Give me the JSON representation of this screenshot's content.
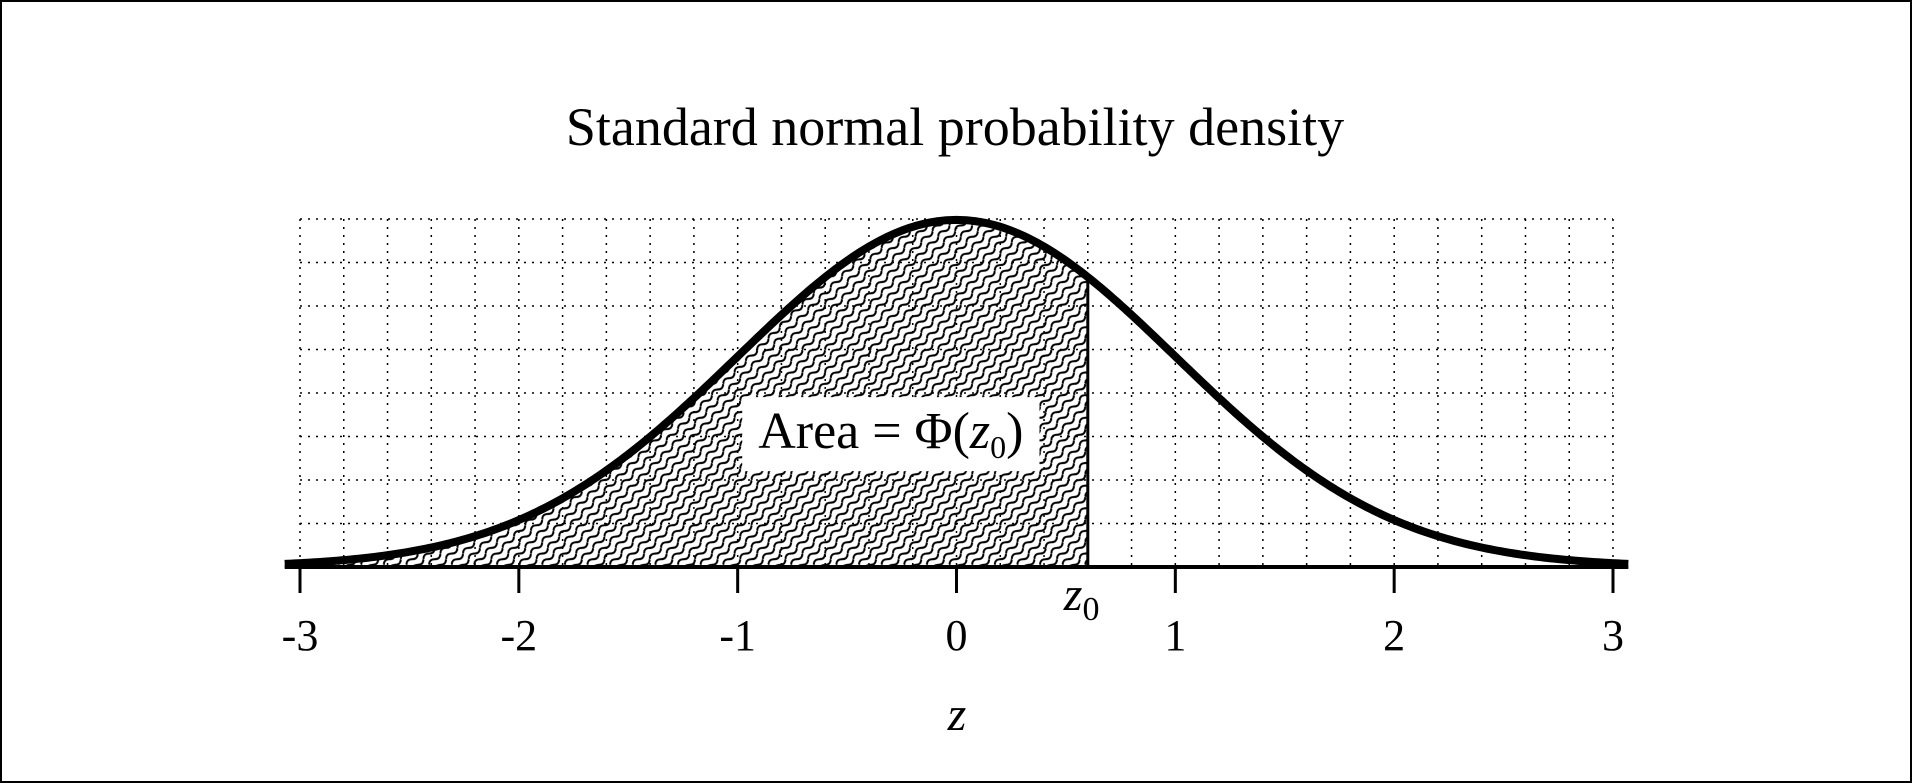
{
  "chart_data": {
    "type": "area",
    "title": "Standard normal probability density",
    "xlabel": "z",
    "ylabel": "",
    "xlim": [
      -3,
      3
    ],
    "ylim": [
      0,
      0.4
    ],
    "x_ticks": [
      -3,
      -2,
      -1,
      0,
      1,
      2,
      3
    ],
    "x_tick_labels": [
      "-3",
      "-2",
      "-1",
      "0",
      "1",
      "2",
      "3"
    ],
    "grid": true,
    "grid_x_step": 0.2,
    "grid_y_step": 0.05,
    "series": [
      {
        "function": "standard-normal-pdf",
        "line_color": "#000000"
      }
    ],
    "shaded_region": {
      "from": -3,
      "to": 0.6,
      "fill": "wavy-hatch",
      "marker_label_main": "z",
      "marker_label_sub": "0"
    },
    "annotation": {
      "x": -0.3,
      "y": 0.155,
      "prefix": "Area = Φ(",
      "var_main": "z",
      "var_sub": "0",
      "suffix": ")"
    }
  }
}
